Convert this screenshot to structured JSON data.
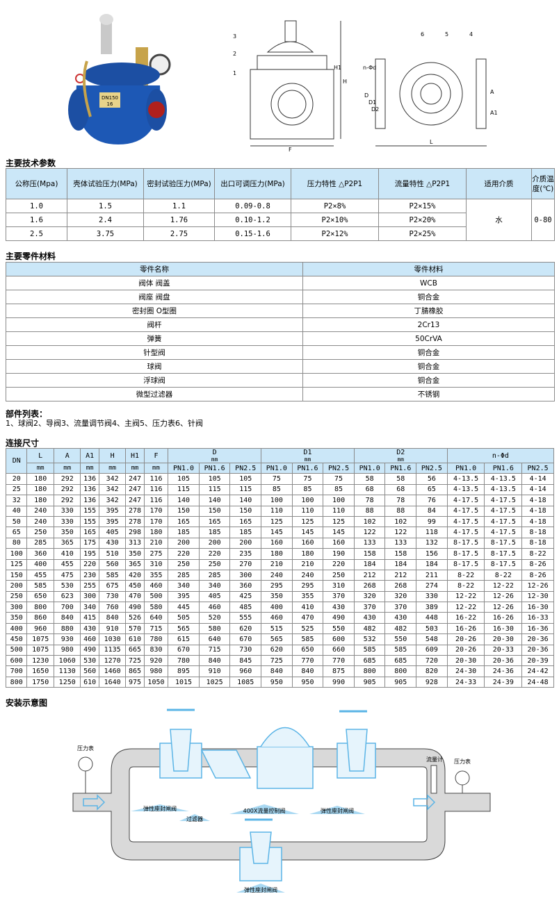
{
  "sections": {
    "tech": "主要技术参数",
    "materials": "主要零件材料",
    "parts_title": "部件列表：",
    "parts_text": "1、球阀2、导阀3、流量调节阀4、主阀5、压力表6、针阀",
    "dims": "连接尺寸",
    "install": "安装示意图"
  },
  "product_photo": {
    "plate_text": "DN150",
    "plate_text2": "16"
  },
  "drawing_labels": {
    "side": [
      "3",
      "2",
      "1",
      "H",
      "H1",
      "F"
    ],
    "front": [
      "6",
      "5",
      "4",
      "n-Φd",
      "D",
      "D1",
      "D2",
      "A",
      "A1",
      "L"
    ]
  },
  "tech_table": {
    "headers": [
      "公称压(Mpa)",
      "壳体试验压力(MPa)",
      "密封试验压力(MPa)",
      "出口可调压力(MPa)",
      "压力特性 △P2P1",
      "流量特性 △P2P1",
      "适用介质",
      "介质温度(℃)"
    ],
    "rows": [
      [
        "1.0",
        "1.5",
        "1.1",
        "0.09-0.8",
        "P2×8%",
        "P2×15%"
      ],
      [
        "1.6",
        "2.4",
        "1.76",
        "0.10-1.2",
        "P2×10%",
        "P2×20%"
      ],
      [
        "2.5",
        "3.75",
        "2.75",
        "0.15-1.6",
        "P2×12%",
        "P2×25%"
      ]
    ],
    "medium": "水",
    "temperature": "0-80"
  },
  "materials_table": {
    "headers": [
      "零件名称",
      "零件材料"
    ],
    "rows": [
      [
        "阀体 阀盖",
        "WCB"
      ],
      [
        "阀座 阀盘",
        "铜合金"
      ],
      [
        "密封圈 O型圈",
        "丁腈橡胶"
      ],
      [
        "阀杆",
        "2Cr13"
      ],
      [
        "弹簧",
        "50CrVA"
      ],
      [
        "针型阀",
        "铜合金"
      ],
      [
        "球阀",
        "铜合金"
      ],
      [
        "浮球阀",
        "铜合金"
      ],
      [
        "微型过滤器",
        "不锈钢"
      ]
    ]
  },
  "dims_table": {
    "single_headers": [
      "DN",
      "L",
      "A",
      "A1",
      "H",
      "H1",
      "F"
    ],
    "group_headers": [
      {
        "name": "D",
        "unit": "mm"
      },
      {
        "name": "D1",
        "unit": "mm"
      },
      {
        "name": "D2",
        "unit": "mm"
      },
      {
        "name": "n-Φd",
        "unit": ""
      }
    ],
    "unit": "mm",
    "pn": [
      "PN1.0",
      "PN1.6",
      "PN2.5"
    ],
    "rows": [
      [
        "20",
        "180",
        "292",
        "136",
        "342",
        "247",
        "116",
        "105",
        "105",
        "105",
        "75",
        "75",
        "75",
        "58",
        "58",
        "56",
        "4-13.5",
        "4-13.5",
        "4-14"
      ],
      [
        "25",
        "180",
        "292",
        "136",
        "342",
        "247",
        "116",
        "115",
        "115",
        "115",
        "85",
        "85",
        "85",
        "68",
        "68",
        "65",
        "4-13.5",
        "4-13.5",
        "4-14"
      ],
      [
        "32",
        "180",
        "292",
        "136",
        "342",
        "247",
        "116",
        "140",
        "140",
        "140",
        "100",
        "100",
        "100",
        "78",
        "78",
        "76",
        "4-17.5",
        "4-17.5",
        "4-18"
      ],
      [
        "40",
        "240",
        "330",
        "155",
        "395",
        "278",
        "170",
        "150",
        "150",
        "150",
        "110",
        "110",
        "110",
        "88",
        "88",
        "84",
        "4-17.5",
        "4-17.5",
        "4-18"
      ],
      [
        "50",
        "240",
        "330",
        "155",
        "395",
        "278",
        "170",
        "165",
        "165",
        "165",
        "125",
        "125",
        "125",
        "102",
        "102",
        "99",
        "4-17.5",
        "4-17.5",
        "4-18"
      ],
      [
        "65",
        "250",
        "350",
        "165",
        "405",
        "298",
        "180",
        "185",
        "185",
        "185",
        "145",
        "145",
        "145",
        "122",
        "122",
        "118",
        "4-17.5",
        "4-17.5",
        "8-18"
      ],
      [
        "80",
        "285",
        "365",
        "175",
        "430",
        "313",
        "210",
        "200",
        "200",
        "200",
        "160",
        "160",
        "160",
        "133",
        "133",
        "132",
        "8-17.5",
        "8-17.5",
        "8-18"
      ],
      [
        "100",
        "360",
        "410",
        "195",
        "510",
        "350",
        "275",
        "220",
        "220",
        "235",
        "180",
        "180",
        "190",
        "158",
        "158",
        "156",
        "8-17.5",
        "8-17.5",
        "8-22"
      ],
      [
        "125",
        "400",
        "455",
        "220",
        "560",
        "365",
        "310",
        "250",
        "250",
        "270",
        "210",
        "210",
        "220",
        "184",
        "184",
        "184",
        "8-17.5",
        "8-17.5",
        "8-26"
      ],
      [
        "150",
        "455",
        "475",
        "230",
        "585",
        "420",
        "355",
        "285",
        "285",
        "300",
        "240",
        "240",
        "250",
        "212",
        "212",
        "211",
        "8-22",
        "8-22",
        "8-26"
      ],
      [
        "200",
        "585",
        "530",
        "255",
        "675",
        "450",
        "460",
        "340",
        "340",
        "360",
        "295",
        "295",
        "310",
        "268",
        "268",
        "274",
        "8-22",
        "12-22",
        "12-26"
      ],
      [
        "250",
        "650",
        "623",
        "300",
        "730",
        "470",
        "500",
        "395",
        "405",
        "425",
        "350",
        "355",
        "370",
        "320",
        "320",
        "330",
        "12-22",
        "12-26",
        "12-30"
      ],
      [
        "300",
        "800",
        "700",
        "340",
        "760",
        "490",
        "580",
        "445",
        "460",
        "485",
        "400",
        "410",
        "430",
        "370",
        "370",
        "389",
        "12-22",
        "12-26",
        "16-30"
      ],
      [
        "350",
        "860",
        "840",
        "415",
        "840",
        "526",
        "640",
        "505",
        "520",
        "555",
        "460",
        "470",
        "490",
        "430",
        "430",
        "448",
        "16-22",
        "16-26",
        "16-33"
      ],
      [
        "400",
        "960",
        "880",
        "430",
        "910",
        "570",
        "715",
        "565",
        "580",
        "620",
        "515",
        "525",
        "550",
        "482",
        "482",
        "503",
        "16-26",
        "16-30",
        "16-36"
      ],
      [
        "450",
        "1075",
        "930",
        "460",
        "1030",
        "610",
        "780",
        "615",
        "640",
        "670",
        "565",
        "585",
        "600",
        "532",
        "550",
        "548",
        "20-26",
        "20-30",
        "20-36"
      ],
      [
        "500",
        "1075",
        "980",
        "490",
        "1135",
        "665",
        "830",
        "670",
        "715",
        "730",
        "620",
        "650",
        "660",
        "585",
        "585",
        "609",
        "20-26",
        "20-33",
        "20-36"
      ],
      [
        "600",
        "1230",
        "1060",
        "530",
        "1270",
        "725",
        "920",
        "780",
        "840",
        "845",
        "725",
        "770",
        "770",
        "685",
        "685",
        "720",
        "20-30",
        "20-36",
        "20-39"
      ],
      [
        "700",
        "1650",
        "1130",
        "560",
        "1460",
        "865",
        "980",
        "895",
        "910",
        "960",
        "840",
        "840",
        "875",
        "800",
        "800",
        "820",
        "24-30",
        "24-36",
        "24-42"
      ],
      [
        "800",
        "1750",
        "1250",
        "610",
        "1640",
        "975",
        "1050",
        "1015",
        "1025",
        "1085",
        "950",
        "950",
        "990",
        "905",
        "905",
        "928",
        "24-33",
        "24-39",
        "24-48"
      ]
    ]
  },
  "install_diagram": {
    "labels": {
      "gauge_left": "压力表",
      "gauge_right": "压力表",
      "flowmeter": "流量计",
      "gate_valve_1": "弹性座封闸阀",
      "strainer": "过滤器",
      "control_valve": "400X流量控制阀",
      "gate_valve_2": "弹性座封闸阀",
      "gate_valve_bypass": "弹性座封闸阀"
    },
    "colors": {
      "pipe": "#d9d9d9",
      "valve": "#5ab4e6",
      "label_bg": "#a8d8f2"
    }
  }
}
